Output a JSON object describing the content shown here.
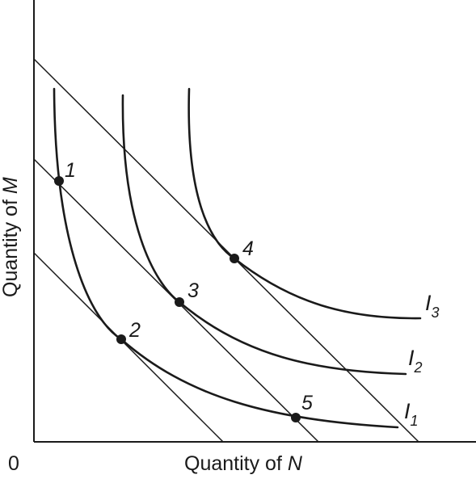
{
  "axes": {
    "x_label": "Quantity of ",
    "x_var": "N",
    "y_label": "Quantity of ",
    "y_var": "M",
    "origin": "0"
  },
  "curves": [
    {
      "letter": "I",
      "sub": "1"
    },
    {
      "letter": "I",
      "sub": "2"
    },
    {
      "letter": "I",
      "sub": "3"
    }
  ],
  "points": [
    "1",
    "2",
    "3",
    "4",
    "5"
  ]
}
